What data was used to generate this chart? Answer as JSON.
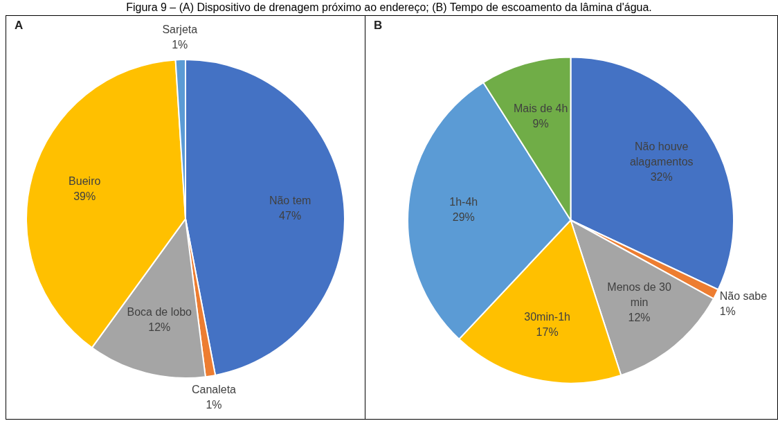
{
  "chart_data": [
    {
      "type": "pie",
      "title": "Figura 9 – (A) Dispositivo de drenagem próximo ao endereço; (B) Tempo de escoamento da lâmina d'água.",
      "subtitle": "A",
      "categories": [
        "Não tem",
        "Canaleta",
        "Boca de lobo",
        "Bueiro",
        "Sarjeta"
      ],
      "values": [
        47,
        1,
        12,
        39,
        1
      ],
      "value_labels": [
        "47%",
        "1%",
        "12%",
        "39%",
        "1%"
      ],
      "colors": [
        "#4472c4",
        "#ed7d31",
        "#a5a5a5",
        "#ffc000",
        "#5b9bd5"
      ]
    },
    {
      "type": "pie",
      "subtitle": "B",
      "categories": [
        "Não houve alagamentos",
        "Não sabe",
        "Menos de 30 min",
        "30min-1h",
        "1h-4h",
        "Mais de 4h"
      ],
      "values": [
        32,
        1,
        12,
        17,
        29,
        9
      ],
      "value_labels": [
        "32%",
        "1%",
        "12%",
        "17%",
        "29%",
        "9%"
      ],
      "colors": [
        "#4472c4",
        "#ed7d31",
        "#a5a5a5",
        "#ffc000",
        "#5b9bd5",
        "#70ad47"
      ]
    }
  ]
}
